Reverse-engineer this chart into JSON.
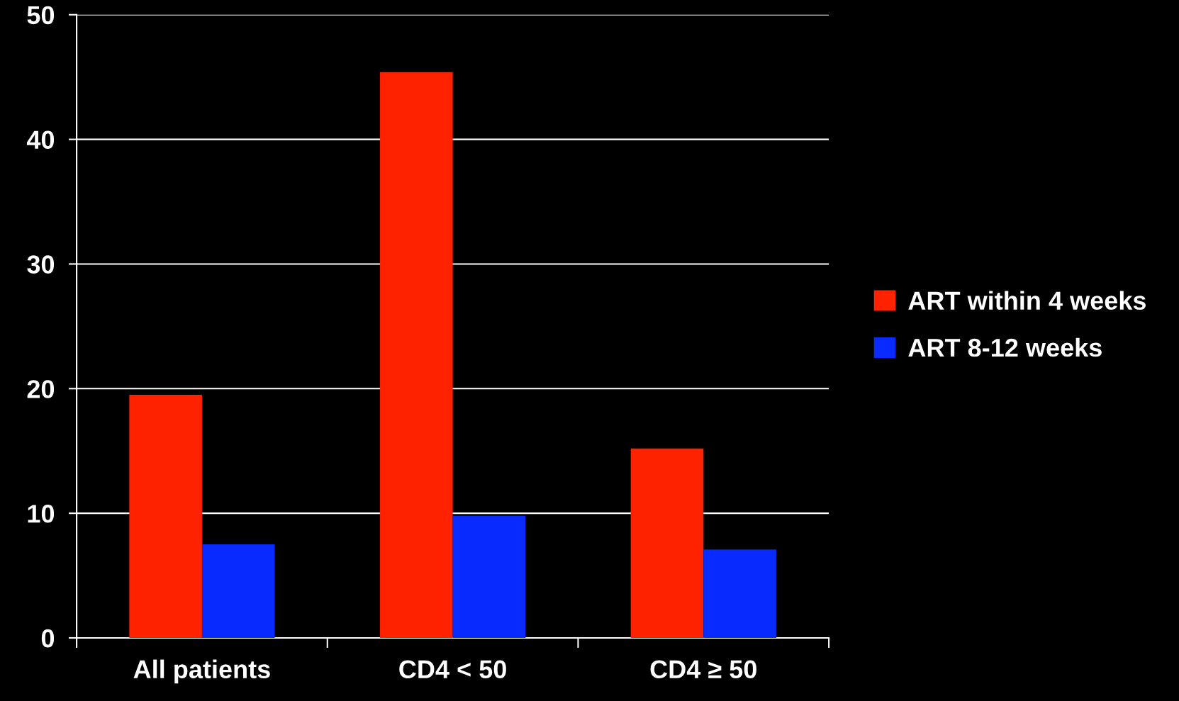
{
  "chart_data": {
    "type": "bar",
    "categories": [
      "All patients",
      "CD4 < 50",
      "CD4 ≥ 50"
    ],
    "series": [
      {
        "name": "ART within 4 weeks",
        "color": "#ff2200",
        "values": [
          19.5,
          45.4,
          15.2
        ]
      },
      {
        "name": "ART 8-12 weeks",
        "color": "#0a2bff",
        "values": [
          7.5,
          9.8,
          7.1
        ]
      }
    ],
    "ylim": [
      0,
      50
    ],
    "yticks": [
      0,
      10,
      20,
      30,
      40,
      50
    ],
    "grid": "y",
    "legend": "right"
  }
}
